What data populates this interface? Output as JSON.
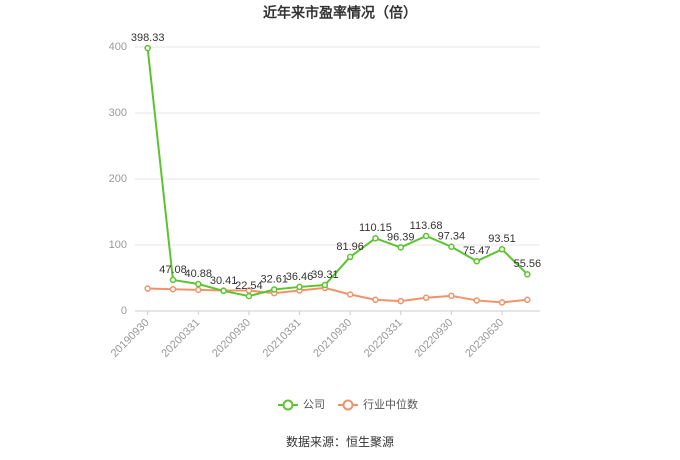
{
  "chart_data": {
    "type": "line",
    "title": "近年来市盈率情况（倍）",
    "categories": [
      "20190930",
      null,
      "20200331",
      null,
      "20200930",
      null,
      "20210331",
      null,
      "20210930",
      null,
      "20220331",
      null,
      "20220930",
      null,
      "20230630",
      null
    ],
    "series": [
      {
        "name": "公司",
        "color": "#5cc42e",
        "values": [
          398.33,
          47.08,
          40.88,
          30.41,
          22.54,
          32.61,
          36.46,
          39.31,
          81.96,
          110.15,
          96.39,
          113.68,
          97.34,
          75.47,
          93.51,
          55.56
        ],
        "data_labels": true
      },
      {
        "name": "行业中位数",
        "color": "#f0936a",
        "values": [
          34,
          33,
          32,
          31,
          31,
          27,
          31,
          35,
          25,
          17,
          15,
          20,
          23,
          16,
          13,
          17
        ],
        "data_labels": false
      }
    ],
    "ylim": [
      0,
      400
    ],
    "yticks": [
      0,
      100,
      200,
      300,
      400
    ],
    "grid": true,
    "legend": "bottom",
    "source": "数据来源：恒生聚源"
  }
}
